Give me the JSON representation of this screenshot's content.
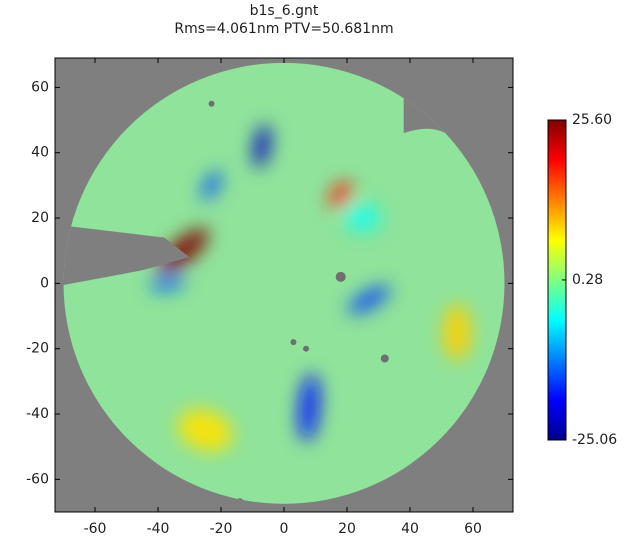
{
  "chart_data": {
    "type": "surface-map",
    "title": "b1s_6.gnt",
    "subtitle": "Rms=4.061nm PTV=50.681nm",
    "xlim": [
      -72.7,
      72.7
    ],
    "xticks": [
      -60,
      -40,
      -20,
      0,
      20,
      40,
      60
    ],
    "ylim": [
      -70,
      69
    ],
    "yticks": [
      -60,
      -40,
      -20,
      0,
      20,
      40,
      60
    ],
    "aperture_radius": 70,
    "colorbar": {
      "lim": [
        -25.06,
        25.6
      ],
      "colormap": "jet",
      "ticks": [
        {
          "value": 25.6,
          "label": "25.60"
        },
        0.28,
        -25.06
      ]
    },
    "spots": [
      {
        "x": -32,
        "y": 10,
        "value": 25.6
      },
      {
        "x": 18,
        "y": 27,
        "value": 18
      },
      {
        "x": -7,
        "y": 42,
        "value": -22
      },
      {
        "x": -23,
        "y": 30,
        "value": -15
      },
      {
        "x": -37,
        "y": 0,
        "value": -14
      },
      {
        "x": 27,
        "y": -5,
        "value": -16
      },
      {
        "x": 8,
        "y": -38,
        "value": -18
      },
      {
        "x": 25,
        "y": 20,
        "value": -5
      },
      {
        "x": -25,
        "y": -45,
        "value": 8
      },
      {
        "x": 55,
        "y": -15,
        "value": 9
      }
    ]
  }
}
